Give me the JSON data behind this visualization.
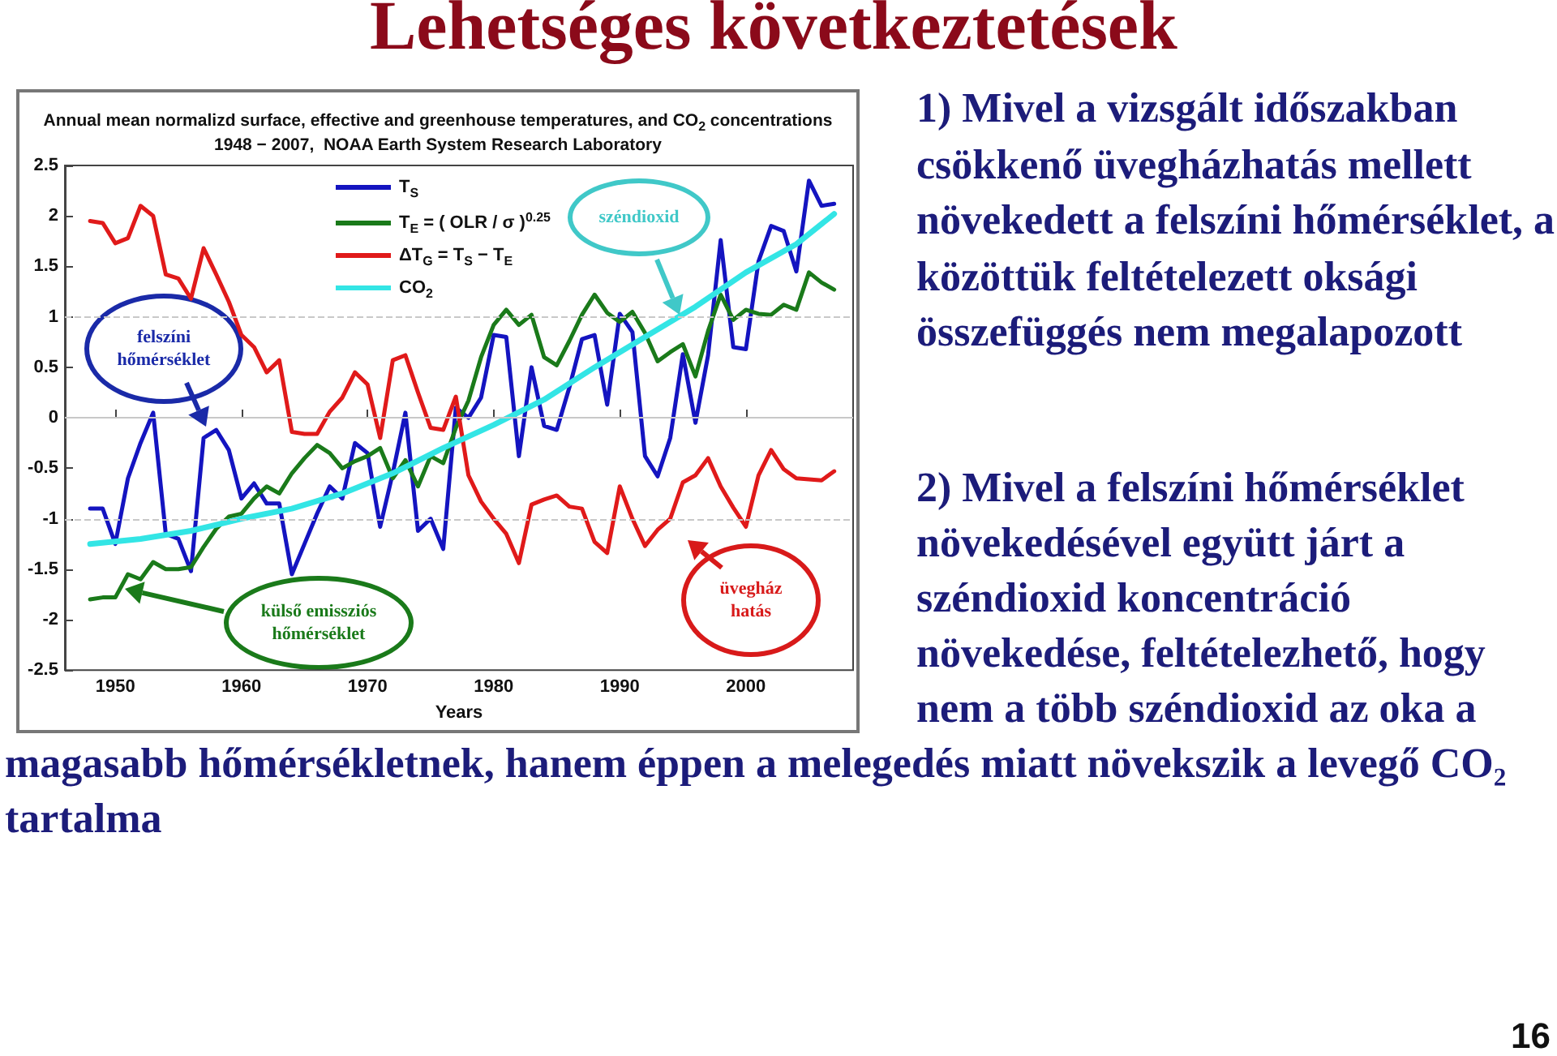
{
  "chart_data": {
    "type": "line",
    "title": "Annual mean normalizd surface, effective and greenhouse temperatures, and CO$_{2}$ concentrations",
    "subtitle": "1948 − 2007,  NOAA Earth System Research Laboratory",
    "xlabel": "Years",
    "x": [
      1948,
      1949,
      1950,
      1951,
      1952,
      1953,
      1954,
      1955,
      1956,
      1957,
      1958,
      1959,
      1960,
      1961,
      1962,
      1963,
      1964,
      1965,
      1966,
      1967,
      1968,
      1969,
      1970,
      1971,
      1972,
      1973,
      1974,
      1975,
      1976,
      1977,
      1978,
      1979,
      1980,
      1981,
      1982,
      1983,
      1984,
      1985,
      1986,
      1987,
      1988,
      1989,
      1990,
      1991,
      1992,
      1993,
      1994,
      1995,
      1996,
      1997,
      1998,
      1999,
      2000,
      2001,
      2002,
      2003,
      2004,
      2005,
      2006,
      2007
    ],
    "series": [
      {
        "name": "T$_{S}$",
        "color": "#1414c0",
        "values": [
          -0.9,
          -0.9,
          -1.25,
          -0.6,
          -0.25,
          0.05,
          -1.15,
          -1.2,
          -1.52,
          -0.2,
          -0.12,
          -0.32,
          -0.8,
          -0.65,
          -0.85,
          -0.85,
          -1.55,
          -1.25,
          -0.95,
          -0.68,
          -0.8,
          -0.25,
          -0.35,
          -1.08,
          -0.55,
          0.05,
          -1.12,
          -1.0,
          -1.3,
          0.1,
          0.0,
          0.2,
          0.82,
          0.8,
          -0.38,
          0.5,
          -0.08,
          -0.12,
          0.3,
          0.78,
          0.82,
          0.13,
          1.03,
          0.85,
          -0.38,
          -0.58,
          -0.2,
          0.63,
          -0.05,
          0.62,
          1.76,
          0.7,
          0.68,
          1.55,
          1.9,
          1.85,
          1.45,
          2.35,
          2.1,
          2.12
        ]
      },
      {
        "name": "T$_{E}$ = ( OLR / σ )$^{0.25}$",
        "color": "#1a7a1a",
        "values": [
          -1.8,
          -1.78,
          -1.78,
          -1.55,
          -1.6,
          -1.43,
          -1.5,
          -1.5,
          -1.48,
          -1.28,
          -1.1,
          -0.98,
          -0.95,
          -0.8,
          -0.68,
          -0.75,
          -0.55,
          -0.4,
          -0.27,
          -0.35,
          -0.5,
          -0.43,
          -0.38,
          -0.3,
          -0.6,
          -0.42,
          -0.68,
          -0.38,
          -0.45,
          -0.1,
          0.17,
          0.6,
          0.92,
          1.07,
          0.92,
          1.02,
          0.6,
          0.52,
          0.76,
          1.02,
          1.22,
          1.04,
          0.95,
          1.05,
          0.84,
          0.56,
          0.65,
          0.73,
          0.41,
          0.86,
          1.22,
          0.97,
          1.07,
          1.03,
          1.02,
          1.12,
          1.07,
          1.44,
          1.34,
          1.27
        ]
      },
      {
        "name": "ΔT$_{G}$ = T$_{S}$ − T$_{E}$",
        "color": "#e01a1a",
        "values": [
          1.95,
          1.93,
          1.73,
          1.78,
          2.1,
          2.0,
          1.42,
          1.38,
          1.18,
          1.68,
          1.42,
          1.15,
          0.82,
          0.7,
          0.45,
          0.57,
          -0.14,
          -0.16,
          -0.16,
          0.06,
          0.2,
          0.45,
          0.33,
          -0.2,
          0.57,
          0.62,
          0.25,
          -0.1,
          -0.12,
          0.21,
          -0.57,
          -0.83,
          -1.0,
          -1.15,
          -1.44,
          -0.86,
          -0.81,
          -0.77,
          -0.88,
          -0.9,
          -1.23,
          -1.34,
          -0.68,
          -1.0,
          -1.27,
          -1.11,
          -1.0,
          -0.64,
          -0.57,
          -0.4,
          -0.68,
          -0.89,
          -1.08,
          -0.57,
          -0.32,
          -0.51,
          -0.6,
          -0.61,
          -0.62,
          -0.53
        ]
      },
      {
        "name": "CO$_{2}$",
        "color": "#33e5e5",
        "x": [
          1948,
          1952,
          1956,
          1960,
          1964,
          1968,
          1972,
          1976,
          1980,
          1984,
          1988,
          1992,
          1996,
          2000,
          2004,
          2007
        ],
        "values": [
          -1.25,
          -1.2,
          -1.12,
          -1.0,
          -0.9,
          -0.75,
          -0.55,
          -0.3,
          -0.07,
          0.18,
          0.5,
          0.8,
          1.1,
          1.44,
          1.72,
          2.02
        ]
      }
    ],
    "xlim": [
      1946,
      2008.5
    ],
    "xticks": [
      1950,
      1960,
      1970,
      1980,
      1990,
      2000
    ],
    "ylim": [
      -2.5,
      2.5
    ],
    "yticks": [
      -2.5,
      -2,
      -1.5,
      -1,
      -0.5,
      0,
      0.5,
      1,
      1.5,
      2,
      2.5
    ],
    "ref_lines": [
      {
        "axis": "y",
        "value": 1,
        "color": "#c8c8c8",
        "line_style": "dashed"
      },
      {
        "axis": "y",
        "value": 0,
        "color": "#c8c8c8",
        "line_style": "solid"
      },
      {
        "axis": "y",
        "value": -1,
        "color": "#c8c8c8",
        "line_style": "dashed"
      }
    ],
    "legend": "top left",
    "marker": "none",
    "line_style": "solid",
    "annotations": [
      "Lehetséges következtetések",
      "1) Mivel a vizsgált időszakban csökkenő üvegházhatás mellett növekedett a felszíni hőmérséklet, a közöttük feltételezett oksági összefüggés nem megalapozott",
      "2) Mivel a felszíni hőmérséklet növekedésével együtt járt a széndioxid koncentráció növekedése, feltételezhető, hogy nem a több széndioxid az oka a magasabb hőmérsékletnek, hanem éppen a melegedés miatt növekszik a levegő CO₂ tartalma",
      "felszíni hőmérséklet",
      "széndioxid",
      "külső emissziós hőmérséklet",
      "üvegház hatás",
      "16"
    ]
  }
}
